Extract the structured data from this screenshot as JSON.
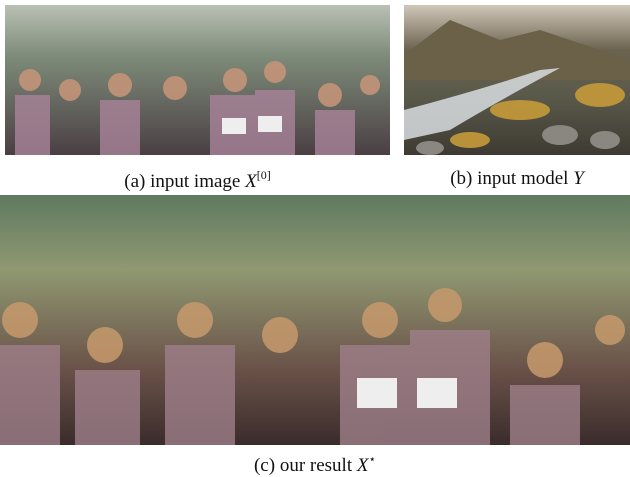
{
  "figure": {
    "panels": [
      {
        "caption": "(a) input image",
        "symbol": "X",
        "superscript": "[0]"
      },
      {
        "caption": "(b) input model",
        "symbol": "Y"
      },
      {
        "caption": "(c) our result",
        "symbol": "X",
        "superscript": "⋆"
      }
    ]
  }
}
